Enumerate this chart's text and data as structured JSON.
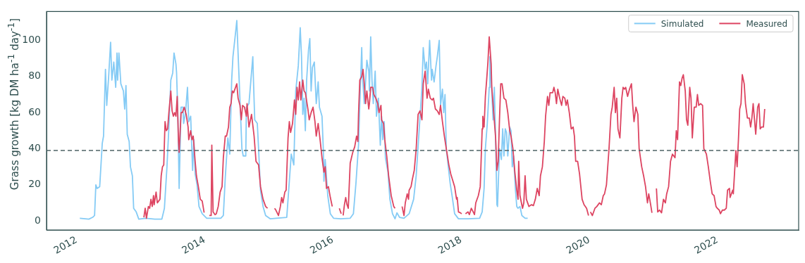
{
  "chart_data": {
    "type": "line",
    "ylabel": "Grass growth [kg DM ha$^{-1}$ day$^{-1}$]",
    "xlim": [
      2011.53,
      2023.27
    ],
    "xticks": [
      2012,
      2014,
      2016,
      2018,
      2020,
      2022
    ],
    "ylim": [
      -5,
      116
    ],
    "yticks": [
      0,
      20,
      40,
      60,
      80,
      100
    ],
    "grid": false,
    "legend": "top right",
    "marker": "none",
    "line_style": "solid",
    "ref_lines": [
      {
        "axis": "y",
        "value": 39,
        "color": "#4d6366",
        "line_style": "dashed"
      }
    ],
    "series": [
      {
        "name": "Simulated",
        "color": "#85cbf5",
        "x": [
          2012.05,
          2012.19,
          2012.25,
          2012.28,
          2012.3,
          2012.32,
          2012.36,
          2012.4,
          2012.42,
          2012.45,
          2012.47,
          2012.5,
          2012.53,
          2012.55,
          2012.58,
          2012.61,
          2012.63,
          2012.64,
          2012.66,
          2012.69,
          2012.73,
          2012.75,
          2012.77,
          2012.79,
          2012.82,
          2012.84,
          2012.87,
          2012.89,
          2012.93,
          2012.97,
          2013.08,
          2013.22,
          2013.33,
          2013.37,
          2013.41,
          2013.44,
          2013.47,
          2013.5,
          2013.52,
          2013.55,
          2013.56,
          2013.58,
          2013.6,
          2013.63,
          2013.66,
          2013.67,
          2013.7,
          2013.73,
          2013.75,
          2013.78,
          2013.81,
          2013.83,
          2013.85,
          2013.88,
          2013.91,
          2013.96,
          2014.03,
          2014.25,
          2014.29,
          2014.32,
          2014.36,
          2014.39,
          2014.42,
          2014.44,
          2014.48,
          2014.5,
          2014.53,
          2014.58,
          2014.6,
          2014.64,
          2014.65,
          2014.69,
          2014.72,
          2014.75,
          2014.76,
          2014.78,
          2014.82,
          2014.84,
          2014.87,
          2014.91,
          2014.95,
          2015.02,
          2015.28,
          2015.31,
          2015.35,
          2015.39,
          2015.42,
          2015.46,
          2015.49,
          2015.51,
          2015.53,
          2015.55,
          2015.57,
          2015.59,
          2015.62,
          2015.64,
          2015.66,
          2015.68,
          2015.71,
          2015.74,
          2015.77,
          2015.79,
          2015.83,
          2015.85,
          2015.86,
          2015.88,
          2015.92,
          2015.96,
          2016.01,
          2016.12,
          2016.27,
          2016.32,
          2016.36,
          2016.4,
          2016.42,
          2016.45,
          2016.46,
          2016.49,
          2016.53,
          2016.56,
          2016.57,
          2016.59,
          2016.61,
          2016.63,
          2016.66,
          2016.68,
          2016.71,
          2016.74,
          2016.76,
          2016.78,
          2016.8,
          2016.82,
          2016.86,
          2016.89,
          2016.93,
          2016.97,
          2017.0,
          2017.04,
          2017.11,
          2017.19,
          2017.26,
          2017.3,
          2017.37,
          2017.39,
          2017.41,
          2017.44,
          2017.46,
          2017.48,
          2017.51,
          2017.54,
          2017.55,
          2017.58,
          2017.61,
          2017.63,
          2017.66,
          2017.68,
          2017.71,
          2017.73,
          2017.75,
          2017.77,
          2017.83,
          2017.86,
          2017.9,
          2017.96,
          2018.11,
          2018.29,
          2018.33,
          2018.36,
          2018.38,
          2018.41,
          2018.44,
          2018.45,
          2018.48,
          2018.5,
          2018.52,
          2018.54,
          2018.56,
          2018.57,
          2018.6,
          2018.63,
          2018.65,
          2018.67,
          2018.69,
          2018.71,
          2018.73,
          2018.76,
          2018.78,
          2018.8,
          2018.82,
          2018.85,
          2018.87,
          2018.89,
          2018.92,
          2018.95,
          2019.0,
          2019.04
        ],
        "values": [
          1.5,
          1,
          2,
          3,
          20,
          18,
          19,
          43,
          47,
          84,
          64,
          80,
          99,
          78,
          88,
          74,
          93,
          78,
          93,
          76,
          72,
          62,
          75,
          48,
          44,
          30,
          25,
          7,
          5,
          1,
          1.5,
          1,
          1,
          7,
          30,
          52,
          78,
          82,
          93,
          87,
          82,
          59,
          18,
          63,
          63,
          54,
          60,
          74,
          55,
          58,
          28,
          45,
          26,
          20,
          8,
          4,
          1.5,
          1.5,
          3,
          24,
          46,
          37,
          78,
          91,
          104,
          111,
          84,
          40,
          36,
          36,
          63,
          65,
          78,
          91,
          78,
          56,
          54,
          40,
          17,
          8,
          3,
          1.2,
          2,
          17,
          37,
          31,
          72,
          86,
          107,
          91,
          59,
          68,
          50,
          78,
          95,
          101,
          72,
          85,
          88,
          65,
          77,
          63,
          58,
          40,
          22,
          34,
          14,
          4,
          1.5,
          1.2,
          1.5,
          4,
          21,
          42,
          65,
          96,
          81,
          65,
          89,
          83,
          72,
          102,
          78,
          65,
          83,
          58,
          68,
          42,
          58,
          45,
          55,
          35,
          27,
          12,
          4,
          1.2,
          4.5,
          2,
          1.5,
          4,
          12,
          25,
          63,
          74,
          96,
          84,
          88,
          76,
          100,
          78,
          84,
          77,
          86,
          91,
          100,
          64,
          73,
          60,
          70,
          40,
          21,
          14,
          4,
          1.2,
          1.2,
          1.5,
          5,
          18,
          40,
          54,
          74,
          91,
          72,
          56,
          74,
          45,
          9,
          8,
          40,
          34,
          51,
          36,
          51,
          49,
          36,
          52,
          50,
          30,
          36,
          17,
          8,
          7,
          8,
          3,
          1.5,
          1.5
        ]
      },
      {
        "name": "Measured",
        "color": "#dd4461",
        "x": [
          2013.05,
          2013.07,
          2013.09,
          2013.12,
          2013.14,
          2013.16,
          2013.18,
          2013.2,
          2013.21,
          2013.24,
          2013.26,
          2013.3,
          2013.32,
          2013.34,
          2013.36,
          2013.38,
          2013.4,
          2013.42,
          2013.44,
          2013.47,
          2013.49,
          2013.51,
          2013.53,
          2013.55,
          2013.57,
          2013.59,
          2013.6,
          2013.63,
          2013.65,
          2013.68,
          2013.71,
          2013.74,
          2013.75,
          2013.78,
          2013.8,
          2013.82,
          2013.85,
          2013.87,
          2013.9,
          2013.93,
          2013.96,
          2013.99,
          2014.03,
          2014.07,
          2014.1,
          2014.11,
          2014.13,
          2014.16,
          2014.18,
          2014.21,
          2014.24,
          2014.27,
          2014.29,
          2014.32,
          2014.34,
          2014.37,
          2014.39,
          2014.41,
          2014.43,
          2014.45,
          2014.48,
          2014.5,
          2014.52,
          2014.55,
          2014.57,
          2014.59,
          2014.62,
          2014.65,
          2014.66,
          2014.69,
          2014.73,
          2014.77,
          2014.8,
          2014.84,
          2014.87,
          2014.91,
          2014.95,
          2014.98,
          2015.04,
          2015.09,
          2015.11,
          2015.15,
          2015.18,
          2015.2,
          2015.22,
          2015.25,
          2015.27,
          2015.3,
          2015.32,
          2015.34,
          2015.37,
          2015.4,
          2015.42,
          2015.44,
          2015.46,
          2015.48,
          2015.5,
          2015.53,
          2015.55,
          2015.57,
          2015.61,
          2015.63,
          2015.66,
          2015.69,
          2015.72,
          2015.74,
          2015.77,
          2015.8,
          2015.83,
          2015.86,
          2015.88,
          2015.9,
          2015.93,
          2015.96,
          2015.99,
          2016.05,
          2016.1,
          2016.13,
          2016.145,
          2016.16,
          2016.18,
          2016.2,
          2016.22,
          2016.24,
          2016.27,
          2016.29,
          2016.31,
          2016.34,
          2016.37,
          2016.39,
          2016.4,
          2016.42,
          2016.45,
          2016.47,
          2016.49,
          2016.51,
          2016.53,
          2016.56,
          2016.57,
          2016.59,
          2016.62,
          2016.64,
          2016.67,
          2016.7,
          2016.72,
          2016.75,
          2016.76,
          2016.79,
          2016.81,
          2016.84,
          2016.87,
          2016.91,
          2016.95,
          2016.97,
          2017.03,
          2017.08,
          2017.11,
          2017.13,
          2017.16,
          2017.18,
          2017.19,
          2017.22,
          2017.24,
          2017.27,
          2017.3,
          2017.33,
          2017.36,
          2017.39,
          2017.41,
          2017.44,
          2017.47,
          2017.49,
          2017.52,
          2017.55,
          2017.57,
          2017.6,
          2017.63,
          2017.66,
          2017.68,
          2017.71,
          2017.74,
          2017.77,
          2017.81,
          2017.84,
          2017.9,
          2017.93,
          2017.94,
          2017.96,
          2017.99,
          2018.01,
          2018.04,
          2018.07,
          2018.11,
          2018.13,
          2018.16,
          2018.19,
          2018.21,
          2018.23,
          2018.27,
          2018.3,
          2018.33,
          2018.34,
          2018.36,
          2018.38,
          2018.4,
          2018.42,
          2018.44,
          2018.47,
          2018.48,
          2018.51,
          2018.54,
          2018.56,
          2018.58,
          2018.6,
          2018.62,
          2018.64,
          2018.67,
          2018.7,
          2018.73,
          2018.76,
          2018.78,
          2018.81,
          2018.84,
          2018.87,
          2018.89,
          2018.9,
          2018.92,
          2018.96,
          2018.98,
          2019.0,
          2019.02,
          2019.06,
          2019.1,
          2019.13,
          2019.16,
          2019.19,
          2019.22,
          2019.24,
          2019.27,
          2019.3,
          2019.32,
          2019.35,
          2019.37,
          2019.39,
          2019.43,
          2019.45,
          2019.47,
          2019.49,
          2019.51,
          2019.54,
          2019.57,
          2019.59,
          2019.62,
          2019.64,
          2019.66,
          2019.69,
          2019.72,
          2019.75,
          2019.77,
          2019.79,
          2019.82,
          2019.85,
          2019.89,
          2019.92,
          2019.96,
          2019.99,
          2020.005,
          2020.02,
          2020.05,
          2020.09,
          2020.12,
          2020.16,
          2020.19,
          2020.22,
          2020.24,
          2020.27,
          2020.31,
          2020.34,
          2020.36,
          2020.39,
          2020.41,
          2020.43,
          2020.45,
          2020.48,
          2020.51,
          2020.53,
          2020.55,
          2020.57,
          2020.6,
          2020.63,
          2020.66,
          2020.68,
          2020.7,
          2020.73,
          2020.76,
          2020.78,
          2020.82,
          2020.85,
          2020.88,
          2020.91,
          2020.93,
          2020.96,
          2020.98,
          2021.01,
          2021.05,
          2021.07,
          2021.1,
          2021.13,
          2021.16,
          2021.19,
          2021.21,
          2021.24,
          2021.27,
          2021.3,
          2021.34,
          2021.36,
          2021.38,
          2021.41,
          2021.43,
          2021.45,
          2021.47,
          2021.5,
          2021.52,
          2021.54,
          2021.57,
          2021.59,
          2021.61,
          2021.64,
          2021.67,
          2021.69,
          2021.71,
          2021.74,
          2021.77,
          2021.79,
          2021.83,
          2021.86,
          2021.89,
          2021.92,
          2021.95,
          2021.98,
          2022.0,
          2022.03,
          2022.05,
          2022.08,
          2022.11,
          2022.14,
          2022.16,
          2022.19,
          2022.2,
          2022.24,
          2022.25,
          2022.27,
          2022.29,
          2022.31,
          2022.33,
          2022.35,
          2022.37,
          2022.39,
          2022.42,
          2022.44,
          2022.47,
          2022.5,
          2022.52,
          2022.54,
          2022.56,
          2022.6,
          2022.63,
          2022.65,
          2022.67,
          2022.69,
          2022.72,
          2022.74
        ],
        "values": [
          2,
          7,
          1.5,
          8,
          7,
          12,
          8,
          14,
          9,
          16,
          10,
          12,
          25,
          30,
          31,
          55,
          50,
          51,
          60,
          72,
          61,
          58,
          60,
          58,
          69,
          44,
          38,
          60,
          60,
          63,
          59,
          52,
          45,
          50,
          45,
          47,
          33,
          25,
          19,
          12,
          11,
          4.6,
          null,
          3,
          3,
          42,
          5,
          3.5,
          4,
          8,
          16,
          19,
          35,
          47,
          47,
          52,
          63,
          65,
          72,
          71,
          74,
          76,
          68,
          64,
          56,
          64,
          63,
          58,
          65,
          52,
          59,
          47,
          33,
          31,
          19,
          12,
          8,
          7,
          null,
          7,
          6,
          3,
          8,
          13,
          10,
          16,
          17,
          46,
          55,
          49,
          54,
          67,
          59,
          74,
          67,
          77,
          67,
          78,
          72,
          71,
          62,
          56,
          60,
          63,
          55,
          47,
          54,
          45,
          35,
          27,
          30,
          18,
          19,
          13,
          8,
          null,
          7,
          4,
          null,
          3,
          9,
          13,
          9,
          7,
          32,
          35,
          38,
          41,
          47,
          44,
          59,
          78,
          80,
          84,
          76,
          65,
          72,
          62,
          65,
          74,
          74,
          70,
          68,
          65,
          60,
          64,
          56,
          54,
          45,
          36,
          25,
          14,
          8,
          7,
          null,
          8,
          3,
          10,
          15,
          12,
          17,
          19,
          23,
          28,
          40,
          59,
          61,
          56,
          76,
          83,
          68,
          73,
          68,
          67,
          68,
          62,
          61,
          59,
          64,
          55,
          47,
          40,
          31,
          26,
          19,
          12,
          13,
          5,
          4.5,
          4,
          null,
          4,
          5,
          3.5,
          7,
          5,
          3.5,
          10,
          14,
          19,
          51,
          58,
          52,
          69,
          78,
          88,
          102,
          87,
          74,
          60,
          46,
          28,
          33,
          56,
          76,
          76,
          68,
          67,
          60,
          50,
          47,
          40,
          27,
          17,
          12,
          33,
          14,
          7,
          10,
          25,
          12,
          8,
          9,
          8.5,
          12,
          18,
          14,
          25,
          30,
          44,
          58,
          69,
          64,
          71,
          71,
          74,
          71,
          65,
          73,
          68,
          64,
          69,
          68,
          64,
          67,
          60,
          51,
          52,
          47,
          33,
          33,
          26,
          12,
          9,
          7,
          3,
          null,
          5,
          3,
          7,
          8,
          10,
          9,
          14,
          15,
          20,
          40,
          59,
          63,
          74,
          60,
          68,
          51,
          46,
          68,
          74,
          73,
          74,
          69,
          73,
          76,
          64,
          55,
          63,
          59,
          40,
          30,
          25,
          19,
          10,
          15,
          9,
          4.5,
          null,
          18,
          5,
          6,
          4.5,
          12,
          10,
          15,
          19,
          33,
          37,
          35,
          50,
          45,
          77,
          75,
          79,
          81,
          72,
          56,
          53,
          74,
          68,
          46,
          63,
          63,
          70,
          64,
          65,
          64,
          40,
          37,
          30,
          22,
          15,
          14,
          8,
          7,
          6,
          4,
          6,
          6,
          7,
          17,
          18,
          13,
          17,
          15,
          27,
          39,
          30,
          45,
          62,
          65,
          81,
          76,
          65,
          57,
          57,
          52,
          57,
          65,
          48,
          63,
          65,
          51,
          52,
          52,
          62
        ]
      }
    ]
  }
}
